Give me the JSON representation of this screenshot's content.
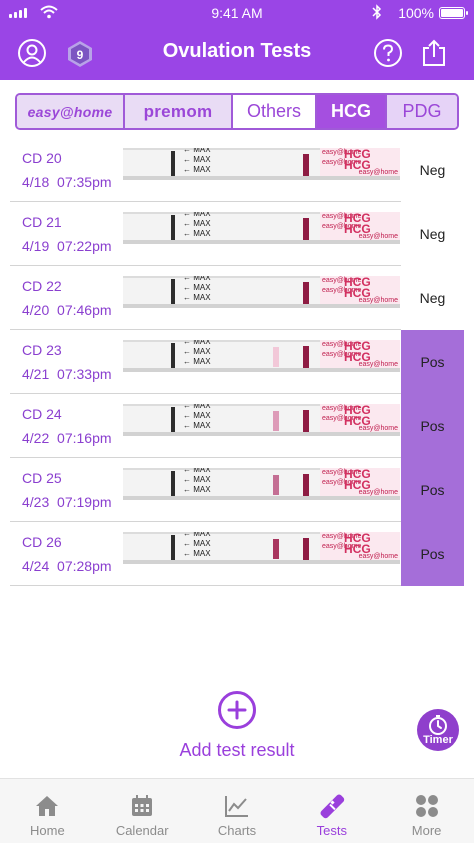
{
  "status_bar": {
    "time": "9:41 AM",
    "battery": "100%"
  },
  "header": {
    "title": "Ovulation Tests",
    "badge_count": "9"
  },
  "tabs": [
    {
      "label": "easy@home",
      "type": "brand"
    },
    {
      "label": "premom",
      "type": "brand"
    },
    {
      "label": "Others",
      "type": "text"
    },
    {
      "label": "HCG",
      "type": "active"
    },
    {
      "label": "PDG",
      "type": "text"
    }
  ],
  "strip": {
    "max_label": "← MAX",
    "hcg": "HCG",
    "brand_small": "easy@home"
  },
  "tests": [
    {
      "cd": "CD 20",
      "date": "4/18",
      "time": "07:35pm",
      "result": "Neg",
      "test_line": "none"
    },
    {
      "cd": "CD 21",
      "date": "4/19",
      "time": "07:22pm",
      "result": "Neg",
      "test_line": "none"
    },
    {
      "cd": "CD 22",
      "date": "4/20",
      "time": "07:46pm",
      "result": "Neg",
      "test_line": "none"
    },
    {
      "cd": "CD 23",
      "date": "4/21",
      "time": "07:33pm",
      "result": "Pos",
      "test_line": "#f2c8d8"
    },
    {
      "cd": "CD 24",
      "date": "4/22",
      "time": "07:16pm",
      "result": "Pos",
      "test_line": "#dd9bb8"
    },
    {
      "cd": "CD 25",
      "date": "4/23",
      "time": "07:19pm",
      "result": "Pos",
      "test_line": "#c46f94"
    },
    {
      "cd": "CD 26",
      "date": "4/24",
      "time": "07:28pm",
      "result": "Pos",
      "test_line": "#a8365f"
    }
  ],
  "add": {
    "label": "Add test result"
  },
  "timer": {
    "label": "Timer"
  },
  "bottom_nav": [
    {
      "label": "Home",
      "icon": "home-icon",
      "active": false
    },
    {
      "label": "Calendar",
      "icon": "calendar-icon",
      "active": false
    },
    {
      "label": "Charts",
      "icon": "charts-icon",
      "active": false
    },
    {
      "label": "Tests",
      "icon": "test-strip-icon",
      "active": true
    },
    {
      "label": "More",
      "icon": "more-grid-icon",
      "active": false
    }
  ],
  "colors": {
    "primary": "#9a45e6",
    "positive_bg": "#a56ed9",
    "tab_active": "#a54fe0"
  }
}
